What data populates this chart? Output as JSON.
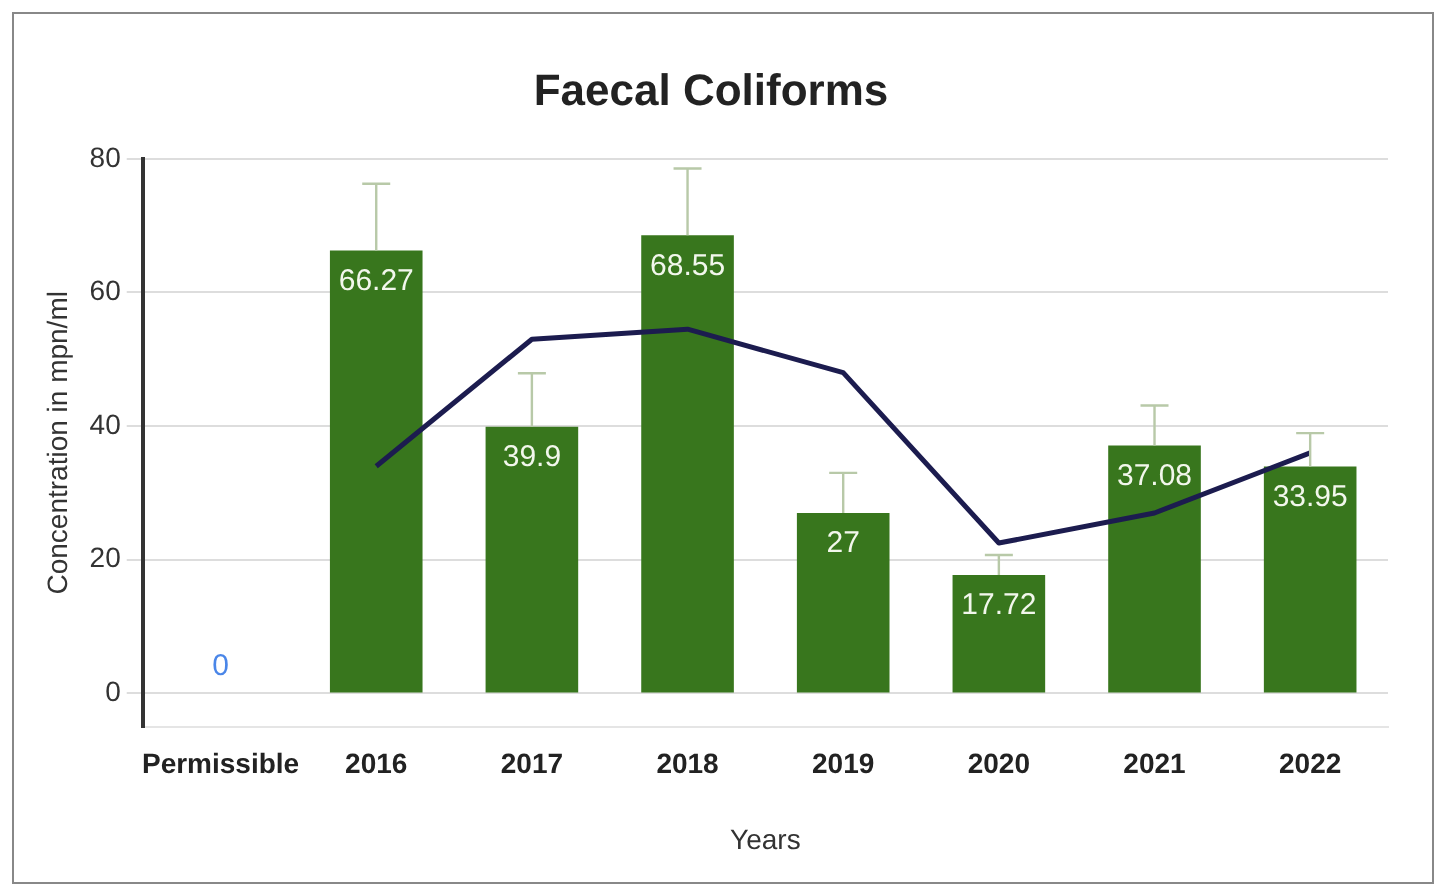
{
  "chart_data": {
    "type": "bar",
    "title": "Faecal Coliforms",
    "xlabel": "Years",
    "ylabel": "Concentration in mpn/ml",
    "categories": [
      "Permissible",
      "2016",
      "2017",
      "2018",
      "2019",
      "2020",
      "2021",
      "2022"
    ],
    "series": [
      {
        "colors": [
          "#4a86e8",
          "#38761d",
          "#38761d",
          "#38761d",
          "#38761d",
          "#38761d",
          "#38761d",
          "#38761d"
        ],
        "values": [
          0,
          66.27,
          39.9,
          68.55,
          27,
          17.72,
          37.08,
          33.95
        ],
        "value_labels": [
          "0",
          "66.27",
          "39.9",
          "68.55",
          "27",
          "17.72",
          "37.08",
          "33.95"
        ],
        "errors": [
          null,
          [
            66.27,
            76.27
          ],
          [
            39.9,
            47.9
          ],
          [
            68.55,
            78.55
          ],
          [
            27,
            33
          ],
          [
            17.72,
            20.72
          ],
          [
            37.08,
            43.08
          ],
          [
            33.95,
            38.95
          ]
        ]
      },
      {
        "type": "line",
        "color": "#1c1c4f",
        "values": [
          null,
          34,
          53,
          54.5,
          48,
          22.5,
          27,
          36
        ]
      }
    ],
    "ylim": [
      -5,
      80
    ],
    "yticks": [
      0,
      20,
      40,
      60,
      80
    ],
    "grid": "y",
    "legend": false,
    "marker": "none"
  }
}
